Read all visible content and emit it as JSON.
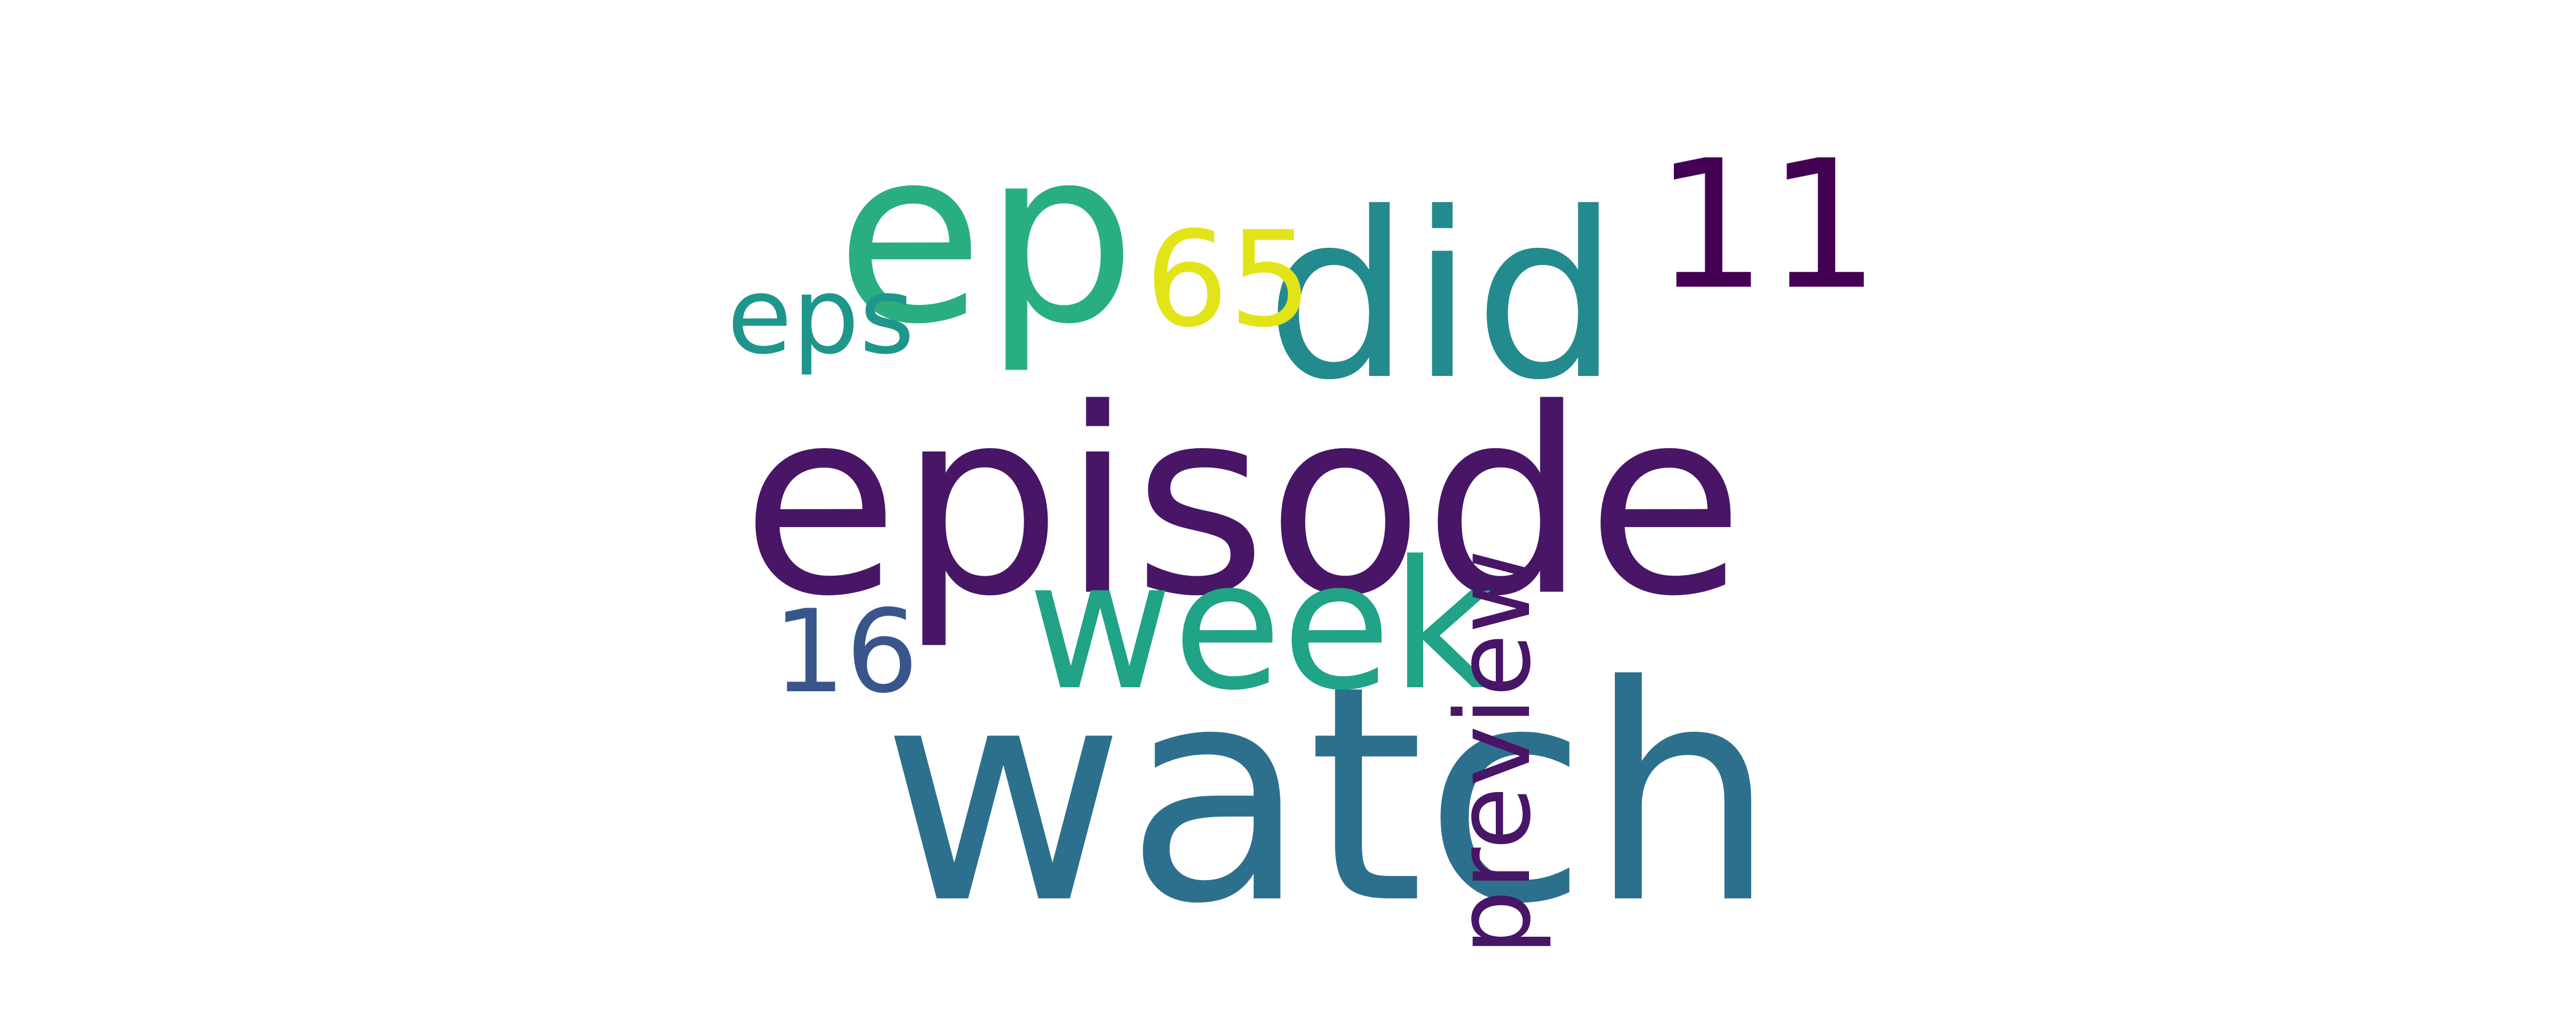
{
  "words": [
    {
      "text": "episode",
      "color": "#481567"
    },
    {
      "text": "watch",
      "color": "#2D708E"
    },
    {
      "text": "did",
      "color": "#238A8D"
    },
    {
      "text": "ep",
      "color": "#29AF7F"
    },
    {
      "text": "week",
      "color": "#20A386"
    },
    {
      "text": "11",
      "color": "#440154"
    },
    {
      "text": "preview",
      "color": "#481567"
    },
    {
      "text": "65",
      "color": "#E3E418"
    },
    {
      "text": "eps",
      "color": "#1F968B"
    },
    {
      "text": "16",
      "color": "#39568C"
    }
  ]
}
